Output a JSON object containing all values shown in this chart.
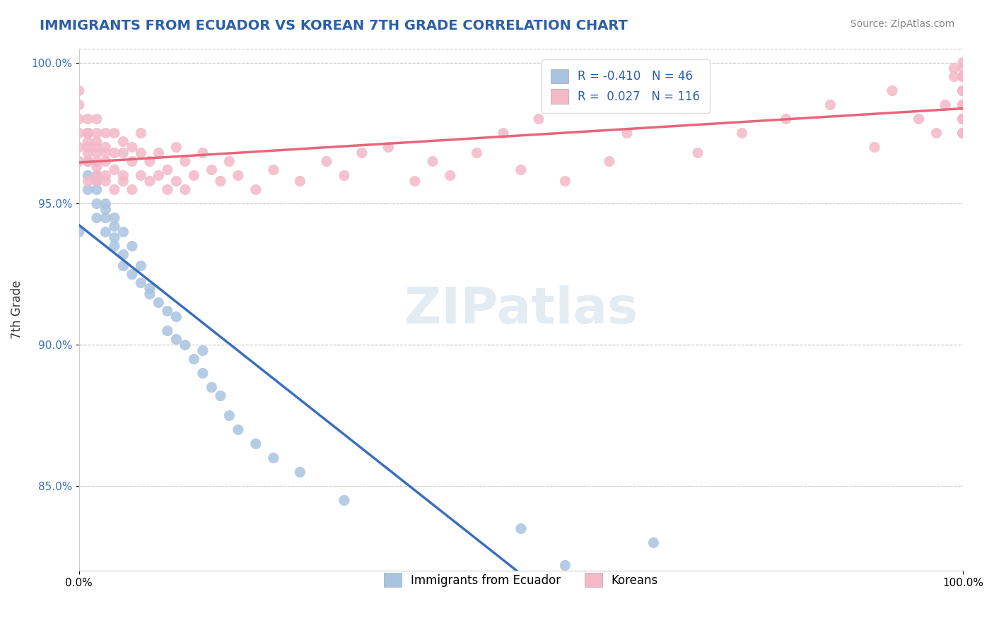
{
  "title": "IMMIGRANTS FROM ECUADOR VS KOREAN 7TH GRADE CORRELATION CHART",
  "source_text": "Source: ZipAtlas.com",
  "xlabel": "",
  "ylabel": "7th Grade",
  "watermark": "ZIPat⁠las",
  "legend_r_ecuador": "-0.410",
  "legend_n_ecuador": "46",
  "legend_r_korean": "0.027",
  "legend_n_korean": "116",
  "xlim": [
    0.0,
    1.0
  ],
  "ylim": [
    0.82,
    1.005
  ],
  "x_ticks": [
    0.0,
    1.0
  ],
  "x_tick_labels": [
    "0.0%",
    "100.0%"
  ],
  "y_ticks": [
    0.85,
    0.9,
    0.95,
    1.0
  ],
  "y_tick_labels": [
    "85.0%",
    "90.0%",
    "95.0%",
    "100.0%"
  ],
  "ecuador_color": "#a8c4e0",
  "ecuador_line_color": "#3a6fbf",
  "korean_color": "#f4b8c8",
  "korean_line_color": "#e8657a",
  "grid_color": "#cccccc",
  "background_color": "#ffffff",
  "ecuador_x": [
    0.0,
    0.01,
    0.01,
    0.01,
    0.02,
    0.02,
    0.02,
    0.02,
    0.02,
    0.03,
    0.03,
    0.03,
    0.03,
    0.04,
    0.04,
    0.04,
    0.04,
    0.05,
    0.05,
    0.05,
    0.06,
    0.06,
    0.07,
    0.07,
    0.08,
    0.08,
    0.09,
    0.1,
    0.1,
    0.11,
    0.11,
    0.12,
    0.13,
    0.14,
    0.14,
    0.15,
    0.16,
    0.17,
    0.18,
    0.2,
    0.22,
    0.25,
    0.3,
    0.5,
    0.55,
    0.65
  ],
  "ecuador_y": [
    0.94,
    0.96,
    0.955,
    0.965,
    0.955,
    0.95,
    0.945,
    0.96,
    0.958,
    0.95,
    0.945,
    0.94,
    0.948,
    0.945,
    0.942,
    0.938,
    0.935,
    0.932,
    0.94,
    0.928,
    0.925,
    0.935,
    0.922,
    0.928,
    0.92,
    0.918,
    0.915,
    0.912,
    0.905,
    0.91,
    0.902,
    0.9,
    0.895,
    0.89,
    0.898,
    0.885,
    0.882,
    0.875,
    0.87,
    0.865,
    0.86,
    0.855,
    0.845,
    0.835,
    0.822,
    0.83
  ],
  "korean_x": [
    0.0,
    0.0,
    0.0,
    0.0,
    0.0,
    0.0,
    0.01,
    0.01,
    0.01,
    0.01,
    0.01,
    0.01,
    0.01,
    0.01,
    0.02,
    0.02,
    0.02,
    0.02,
    0.02,
    0.02,
    0.02,
    0.02,
    0.02,
    0.03,
    0.03,
    0.03,
    0.03,
    0.03,
    0.03,
    0.04,
    0.04,
    0.04,
    0.04,
    0.05,
    0.05,
    0.05,
    0.05,
    0.06,
    0.06,
    0.06,
    0.07,
    0.07,
    0.07,
    0.08,
    0.08,
    0.09,
    0.09,
    0.1,
    0.1,
    0.11,
    0.11,
    0.12,
    0.12,
    0.13,
    0.14,
    0.15,
    0.16,
    0.17,
    0.18,
    0.2,
    0.22,
    0.25,
    0.28,
    0.3,
    0.32,
    0.35,
    0.38,
    0.4,
    0.42,
    0.45,
    0.48,
    0.5,
    0.52,
    0.55,
    0.58,
    0.6,
    0.62,
    0.65,
    0.7,
    0.75,
    0.8,
    0.85,
    0.9,
    0.92,
    0.95,
    0.97,
    0.98,
    0.99,
    0.99,
    1.0,
    1.0,
    1.0,
    1.0,
    1.0,
    1.0,
    1.0,
    1.0,
    1.0,
    1.0,
    1.0,
    1.0,
    1.0,
    1.0,
    1.0,
    1.0,
    1.0,
    1.0,
    1.0,
    1.0,
    1.0,
    1.0,
    1.0,
    1.0,
    1.0,
    1.0,
    1.0
  ],
  "korean_y": [
    0.98,
    0.985,
    0.975,
    0.97,
    0.965,
    0.99,
    0.975,
    0.968,
    0.972,
    0.965,
    0.958,
    0.97,
    0.98,
    0.975,
    0.972,
    0.965,
    0.96,
    0.968,
    0.975,
    0.958,
    0.963,
    0.97,
    0.98,
    0.965,
    0.958,
    0.97,
    0.975,
    0.96,
    0.968,
    0.962,
    0.968,
    0.955,
    0.975,
    0.96,
    0.968,
    0.972,
    0.958,
    0.965,
    0.97,
    0.955,
    0.96,
    0.968,
    0.975,
    0.958,
    0.965,
    0.96,
    0.968,
    0.955,
    0.962,
    0.958,
    0.97,
    0.965,
    0.955,
    0.96,
    0.968,
    0.962,
    0.958,
    0.965,
    0.96,
    0.955,
    0.962,
    0.958,
    0.965,
    0.96,
    0.968,
    0.97,
    0.958,
    0.965,
    0.96,
    0.968,
    0.975,
    0.962,
    0.98,
    0.958,
    0.985,
    0.965,
    0.975,
    0.99,
    0.968,
    0.975,
    0.98,
    0.985,
    0.97,
    0.99,
    0.98,
    0.975,
    0.985,
    0.995,
    0.998,
    0.975,
    0.98,
    0.985,
    0.99,
    0.995,
    1.0,
    0.998,
    0.985,
    0.975,
    0.98,
    0.99,
    0.995,
    0.985,
    0.975,
    0.98,
    0.99,
    0.985,
    0.995,
    0.975,
    0.98,
    0.99,
    0.985,
    0.975,
    0.98,
    0.995,
    0.975,
    0.985
  ]
}
